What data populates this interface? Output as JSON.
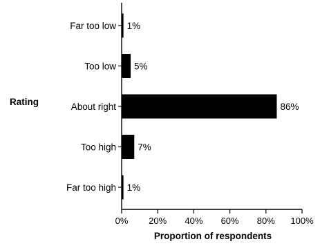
{
  "chart_data": {
    "type": "bar",
    "orientation": "horizontal",
    "categories": [
      "Far too low",
      "Too low",
      "About right",
      "Too high",
      "Far too high"
    ],
    "values": [
      1,
      5,
      86,
      7,
      1
    ],
    "value_labels": [
      "1%",
      "5%",
      "86%",
      "7%",
      "1%"
    ],
    "xlabel": "Proportion of respondents",
    "ylabel": "Rating",
    "xlim": [
      0,
      100
    ],
    "xticks": [
      0,
      20,
      40,
      60,
      80,
      100
    ],
    "xtick_labels": [
      "0%",
      "20%",
      "40%",
      "60%",
      "80%",
      "100%"
    ],
    "grid": false,
    "bar_color": "#000000"
  }
}
